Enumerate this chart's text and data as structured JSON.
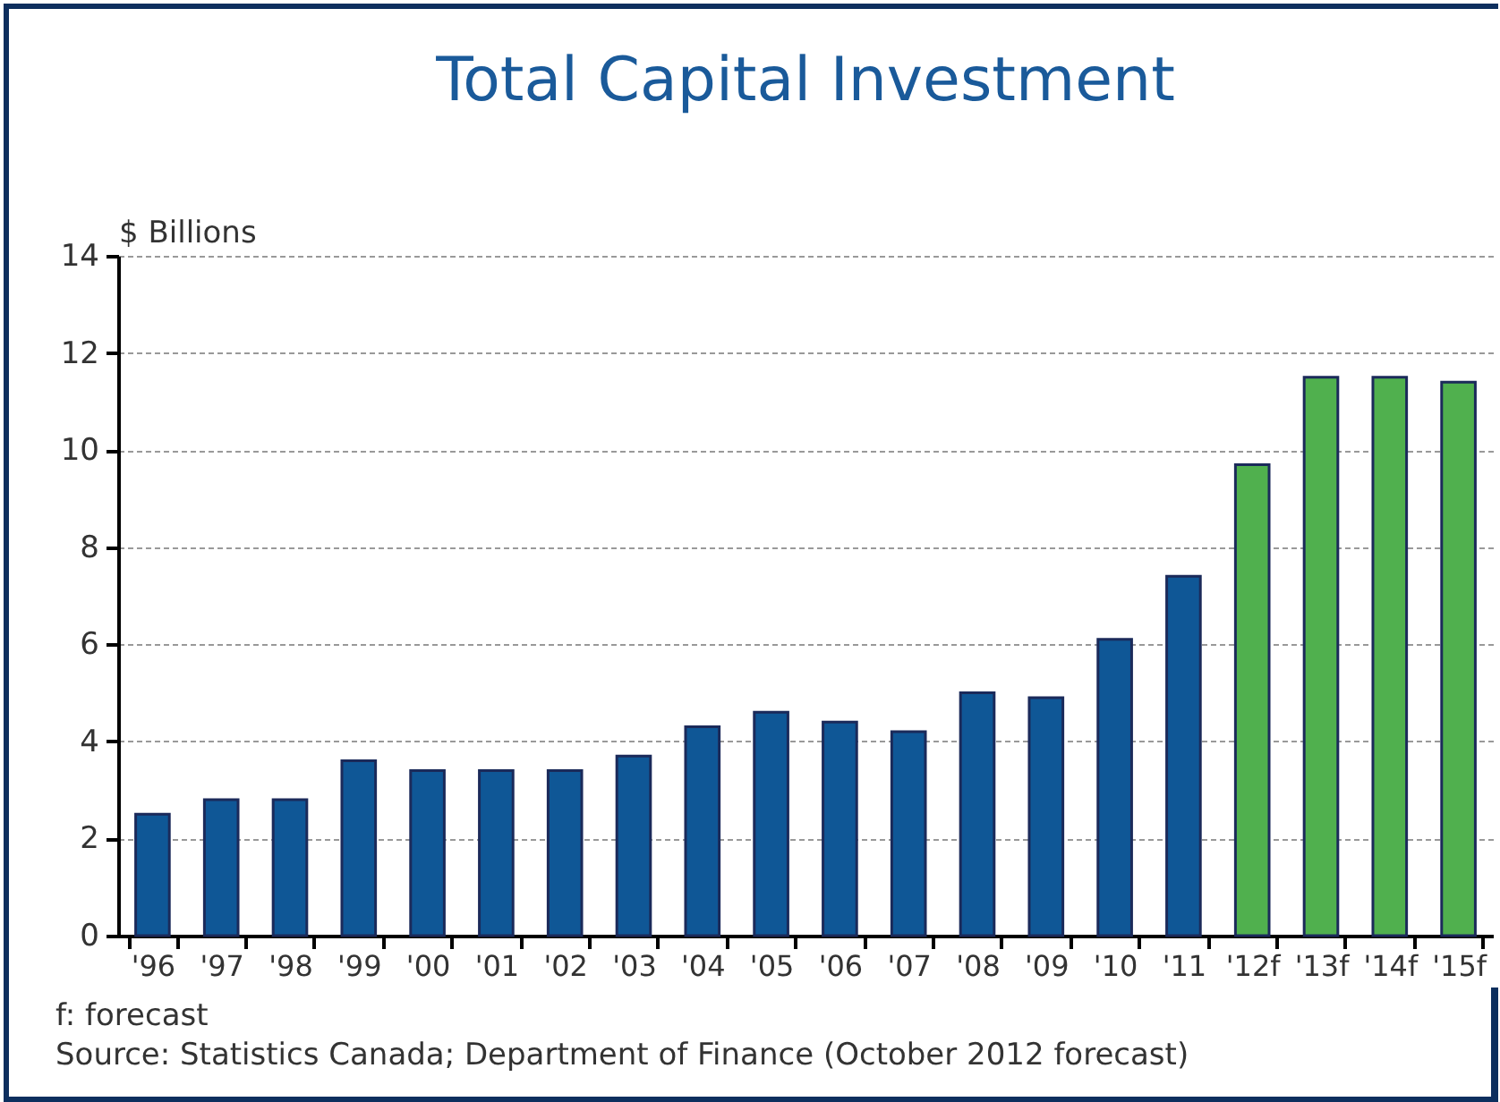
{
  "chart_data": {
    "type": "bar",
    "title": "Total Capital Investment",
    "ylabel": "$ Billions",
    "categories": [
      "'96",
      "'97",
      "'98",
      "'99",
      "'00",
      "'01",
      "'02",
      "'03",
      "'04",
      "'05",
      "'06",
      "'07",
      "'08",
      "'09",
      "'10",
      "'11",
      "'12f",
      "'13f",
      "'14f",
      "'15f"
    ],
    "values": [
      2.5,
      2.8,
      2.8,
      3.6,
      3.4,
      3.4,
      3.4,
      3.7,
      4.3,
      4.6,
      4.4,
      4.2,
      5.0,
      4.9,
      6.1,
      7.4,
      9.7,
      11.5,
      11.5,
      11.4
    ],
    "colors": [
      "#0f5796",
      "#0f5796",
      "#0f5796",
      "#0f5796",
      "#0f5796",
      "#0f5796",
      "#0f5796",
      "#0f5796",
      "#0f5796",
      "#0f5796",
      "#0f5796",
      "#0f5796",
      "#0f5796",
      "#0f5796",
      "#0f5796",
      "#0f5796",
      "#50b04e",
      "#50b04e",
      "#50b04e",
      "#50b04e"
    ],
    "ylim": [
      0,
      14
    ],
    "yticks": [
      0,
      2,
      4,
      6,
      8,
      10,
      12,
      14
    ],
    "grid": "y",
    "annotations": [
      "f: forecast",
      "Source: Statistics Canada; Department of Finance (October 2012 forecast)"
    ]
  }
}
